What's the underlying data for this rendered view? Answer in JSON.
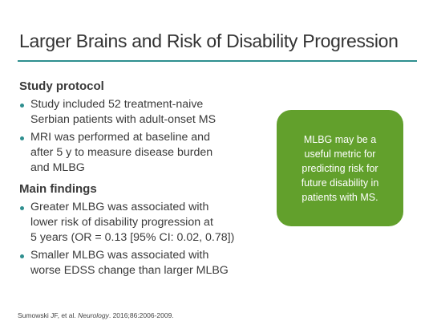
{
  "header": {
    "title": "Larger Brains and Risk of Disability Progression"
  },
  "sections": [
    {
      "heading": "Study protocol",
      "bullets": [
        [
          "Study included 52 treatment-naive",
          "Serbian patients with adult-onset MS"
        ],
        [
          "MRI was performed at baseline and",
          "after 5 y to measure disease burden",
          "and MLBG"
        ]
      ]
    },
    {
      "heading": "Main findings",
      "bullets": [
        [
          "Greater MLBG was associated with",
          "lower risk of disability progression at",
          "5 years (OR = 0.13 [95% CI: 0.02, 0.78])"
        ],
        [
          "Smaller MLBG was associated with",
          "worse EDSS change than larger MLBG"
        ]
      ]
    }
  ],
  "callout": {
    "lines": [
      "MLBG may be a",
      "useful metric for",
      "predicting risk for",
      "future disability in",
      "patients with MS."
    ]
  },
  "citation": {
    "authors": "Sumowski JF, et al. ",
    "journal": "Neurology",
    "details": ". 2016;86:2006-2009."
  }
}
